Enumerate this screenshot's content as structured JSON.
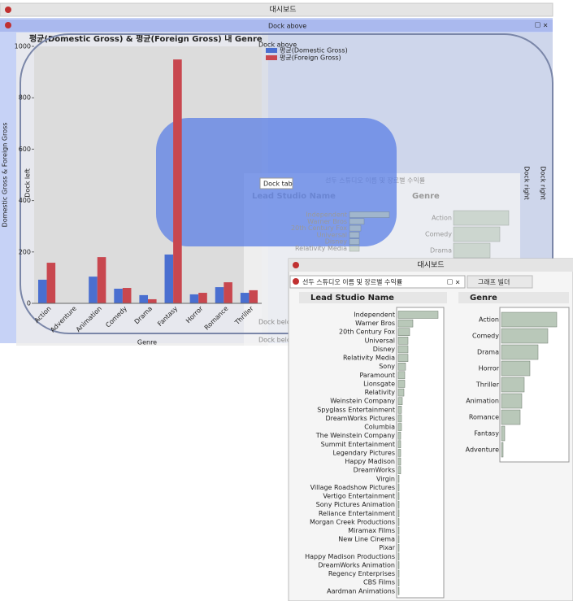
{
  "window": {
    "title": "대시보드"
  },
  "dock_hints": {
    "above": "Dock above",
    "left": "Dock left",
    "right": "Dock right",
    "tab": "Dock tab",
    "below": "Dock below"
  },
  "dashboard": {
    "title": "대시보드",
    "tabs": [
      "선두 스튜디오 이름 및 장르별 수익률",
      "그래프 빌더"
    ]
  },
  "chart_data": [
    {
      "type": "bar",
      "title": "평균(Domestic Gross) & 평균(Foreign Gross) 내 Genre",
      "categories": [
        "Action",
        "Adventure",
        "Animation",
        "Comedy",
        "Drama",
        "Fantasy",
        "Horror",
        "Romance",
        "Thriller"
      ],
      "series": [
        {
          "name": "평균(Domestic Gross)",
          "color": "#4a6fd0",
          "values": [
            92,
            null,
            104,
            57,
            32,
            190,
            35,
            63,
            41
          ]
        },
        {
          "name": "평균(Foreign Gross)",
          "color": "#c8474f",
          "values": [
            158,
            null,
            180,
            60,
            16,
            949,
            41,
            82,
            51
          ]
        }
      ],
      "ylim": [
        0,
        1000
      ],
      "yticks": [
        0,
        200,
        400,
        600,
        800,
        1000
      ],
      "xlabel": "Genre",
      "ylabel": "Domestic Gross & Foreign Gross",
      "legend": "top"
    },
    {
      "type": "hbar",
      "title": "Lead Studio Name",
      "color": "#b9c8b9",
      "categories": [
        "Independent",
        "Warner Bros",
        "20th Century Fox",
        "Universal",
        "Disney",
        "Relativity Media",
        "Sony",
        "Paramount",
        "Lionsgate",
        "Relativity",
        "Weinstein Company",
        "Spyglass Entertainment",
        "DreamWorks Pictures",
        "Columbia",
        "The Weinstein Company",
        "Summit Entertainment",
        "Legendary Pictures",
        "Happy Madison",
        "DreamWorks",
        "Virgin",
        "Village Roadshow Pictures",
        "Vertigo Entertainment",
        "Sony Pictures Animation",
        "Reliance Entertainment",
        "Morgan Creek Productions",
        "Miramax Films",
        "New Line Cinema",
        "Pixar",
        "Happy Madison Productions",
        "DreamWorks Animation",
        "Regency Enterprises",
        "CBS Films",
        "Aardman Animations"
      ],
      "values": [
        49,
        18,
        14,
        12,
        12,
        12,
        9,
        8,
        8,
        7,
        5,
        4,
        4,
        4,
        3,
        3,
        3,
        3,
        3,
        1,
        1,
        1,
        1,
        1,
        1,
        1,
        1,
        1,
        1,
        1,
        1,
        1,
        1
      ]
    },
    {
      "type": "hbar",
      "title": "Genre",
      "color": "#b9c8b9",
      "categories": [
        "Action",
        "Comedy",
        "Drama",
        "Horror",
        "Thriller",
        "Animation",
        "Romance",
        "Fantasy",
        "Adventure"
      ],
      "values": [
        68,
        57,
        45,
        35,
        28,
        25,
        23,
        4,
        2
      ]
    }
  ]
}
